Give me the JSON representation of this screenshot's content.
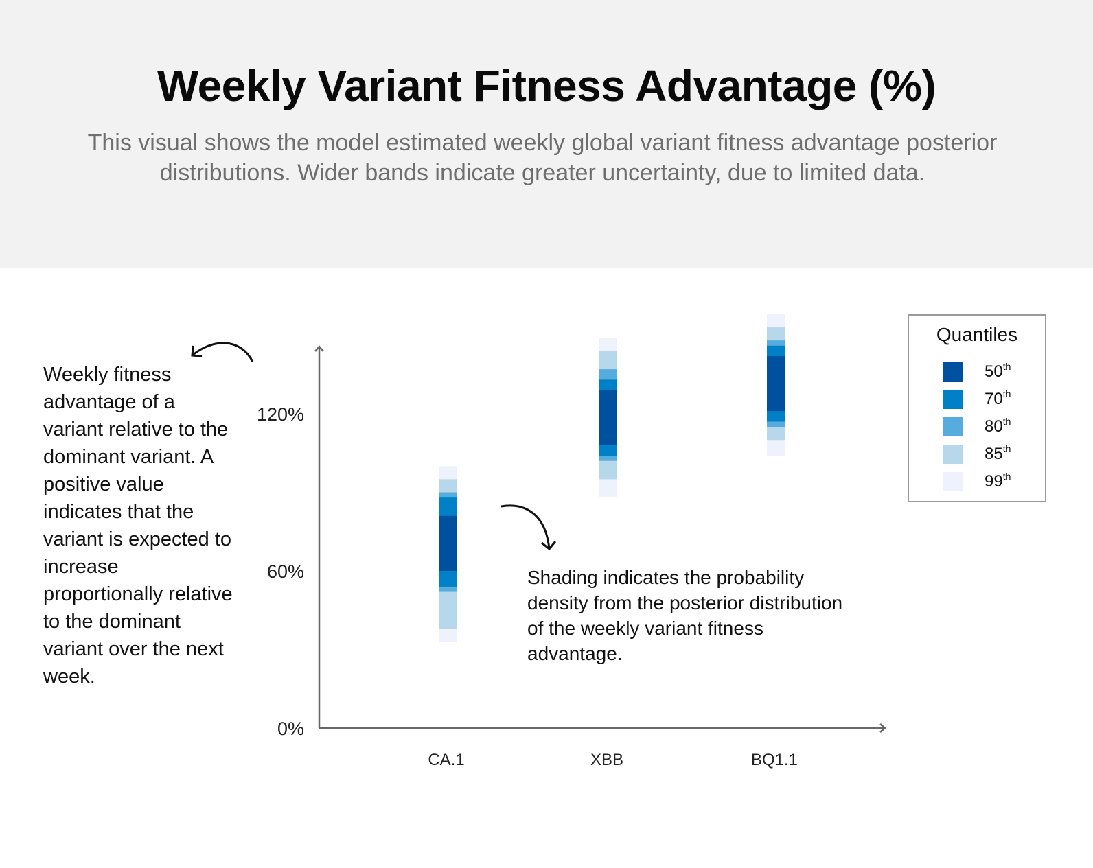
{
  "header": {
    "title": "Weekly Variant Fitness Advantage (%)",
    "subtitle": "This visual shows the model estimated weekly global variant fitness advantage posterior distributions. Wider bands indicate greater uncertainty, due to limited data."
  },
  "annotations": {
    "left": "Weekly fitness advantage of a variant relative to the dominant variant. A positive value indicates that the variant is expected to increase proportionally relative to the dominant variant over the next week.",
    "middle": "Shading indicates the probability density from the posterior distribution of the weekly variant fitness advantage."
  },
  "legend": {
    "title": "Quantiles",
    "suffix": "th",
    "items": [
      {
        "label": "50",
        "color": "#0050a0"
      },
      {
        "label": "70",
        "color": "#0080c6"
      },
      {
        "label": "80",
        "color": "#56acdc"
      },
      {
        "label": "85",
        "color": "#b7d8ea"
      },
      {
        "label": "99",
        "color": "#eef2fc"
      }
    ]
  },
  "chart_data": {
    "type": "bar",
    "categories": [
      "CA.1",
      "XBB",
      "BQ1.1"
    ],
    "yticks": [
      "0%",
      "60%",
      "120%"
    ],
    "ytick_values": [
      0,
      60,
      120
    ],
    "ylim": [
      0,
      145
    ],
    "quantile_levels": [
      "50th",
      "70th",
      "80th",
      "85th",
      "99th"
    ],
    "series": [
      {
        "category": "CA.1",
        "bands": {
          "50th": [
            60,
            81
          ],
          "70th": [
            54,
            88
          ],
          "80th": [
            52,
            90
          ],
          "85th": [
            38,
            95
          ],
          "99th": [
            33,
            100
          ]
        }
      },
      {
        "category": "XBB",
        "bands": {
          "50th": [
            108,
            129
          ],
          "70th": [
            104,
            133
          ],
          "80th": [
            102,
            137
          ],
          "85th": [
            95,
            144
          ],
          "99th": [
            88,
            149
          ]
        }
      },
      {
        "category": "BQ1.1",
        "bands": {
          "50th": [
            121,
            142
          ],
          "70th": [
            117,
            146
          ],
          "80th": [
            115,
            148
          ],
          "85th": [
            110,
            153
          ],
          "99th": [
            104,
            158
          ]
        }
      }
    ]
  }
}
